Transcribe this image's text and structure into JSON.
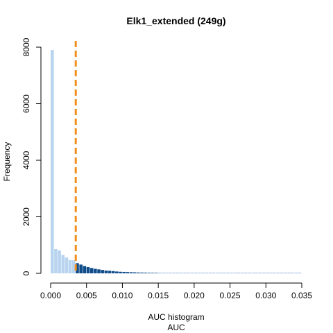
{
  "chart_data": {
    "type": "bar",
    "title": "Elk1_extended (249g)",
    "xlabel": "AUC histogram",
    "xsublabel": "AUC",
    "ylabel": "Frequency",
    "xlim": [
      0,
      0.035
    ],
    "ylim": [
      0,
      8000
    ],
    "x_ticks": [
      0.0,
      0.005,
      0.01,
      0.015,
      0.02,
      0.025,
      0.03,
      0.035
    ],
    "x_tick_labels": [
      "0.000",
      "0.005",
      "0.010",
      "0.015",
      "0.020",
      "0.025",
      "0.030",
      "0.035"
    ],
    "y_ticks": [
      0,
      2000,
      4000,
      6000,
      8000
    ],
    "y_tick_labels": [
      "0",
      "2000",
      "4000",
      "6000",
      "8000"
    ],
    "threshold": 0.0035,
    "bin_width": 0.0005,
    "bins_start": 0.0,
    "values": [
      7900,
      860,
      810,
      650,
      560,
      470,
      460,
      360,
      310,
      260,
      220,
      190,
      160,
      140,
      120,
      100,
      90,
      80,
      65,
      55,
      50,
      45,
      40,
      35,
      30,
      28,
      25,
      22,
      20,
      18,
      16,
      15,
      14,
      13,
      12,
      11,
      10,
      10,
      9,
      9,
      8,
      8,
      7,
      7,
      7,
      6,
      6,
      6,
      5,
      5,
      5,
      5,
      4,
      4,
      4,
      4,
      4,
      3,
      3,
      3,
      3,
      3,
      3,
      2,
      2,
      2,
      2,
      2,
      2,
      2
    ],
    "colors": {
      "below_threshold": "#b8d4ef",
      "above_threshold": "#0f4c8a",
      "tail": "#7a9fd6",
      "threshold_line": "#f28e1c",
      "axis": "#000000"
    },
    "grid": false,
    "legend": "none"
  }
}
